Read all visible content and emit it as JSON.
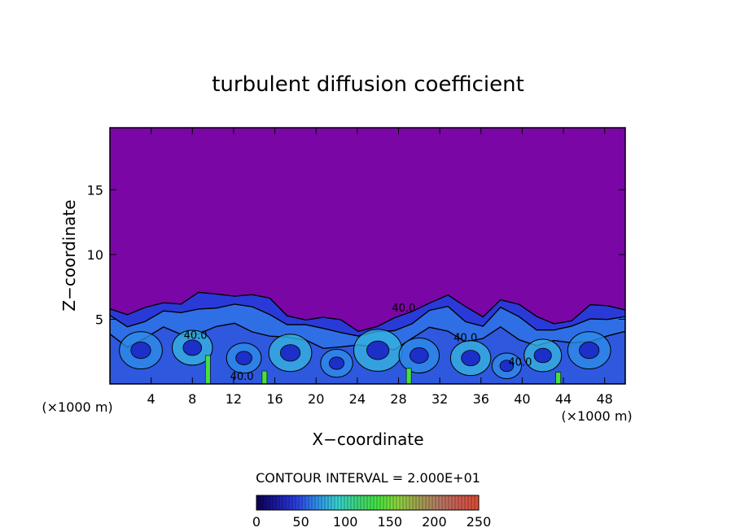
{
  "chart_data": {
    "type": "heatmap",
    "title": "turbulent diffusion coefficient",
    "xlabel": "X−coordinate",
    "ylabel": "Z−coordinate",
    "x_unit": "(×1000 m)",
    "y_unit": "(×1000 m)",
    "xlim": [
      0,
      50
    ],
    "ylim": [
      0,
      19.8
    ],
    "x_ticks": [
      4,
      8,
      12,
      16,
      20,
      24,
      28,
      32,
      36,
      40,
      44,
      48
    ],
    "y_ticks": [
      5,
      10,
      15
    ],
    "contour_interval_text": "CONTOUR INTERVAL = 2.000E+01",
    "contour_labels": [
      "40.0",
      "40.0",
      "40.0",
      "40.0",
      "40.0"
    ],
    "colorbar": {
      "min": 0,
      "max": 250,
      "ticks": [
        0,
        50,
        100,
        150,
        200,
        250
      ],
      "colors": [
        "#0d0050",
        "#1a1aa0",
        "#2a3fe0",
        "#2f8fe8",
        "#37d0d0",
        "#3cd27a",
        "#46e040",
        "#8cd23c",
        "#a0a050",
        "#b47864",
        "#c85a50",
        "#dc4a32"
      ]
    },
    "background_value": 0,
    "background_color": "#7a06a6",
    "turbulent_layer_top_z": [
      5.8,
      5.0,
      6.0,
      6.6,
      6.0,
      6.8,
      7.2,
      7.0,
      6.6,
      6.5,
      5.6,
      5.0,
      4.8,
      5.0,
      4.4,
      4.3,
      4.8,
      5.8,
      6.5,
      6.6,
      5.8,
      5.5,
      6.6,
      5.8,
      5.2,
      5.0,
      4.8,
      5.8,
      6.2,
      6.0
    ],
    "turbulent_layer_x": [
      0,
      1.7,
      3.4,
      5.2,
      6.9,
      8.6,
      10.3,
      12.1,
      13.8,
      15.5,
      17.2,
      19.0,
      20.7,
      22.4,
      24.1,
      25.9,
      27.6,
      29.3,
      31.0,
      32.8,
      34.5,
      36.2,
      37.9,
      39.7,
      41.4,
      43.1,
      44.8,
      46.6,
      48.3,
      50
    ]
  }
}
